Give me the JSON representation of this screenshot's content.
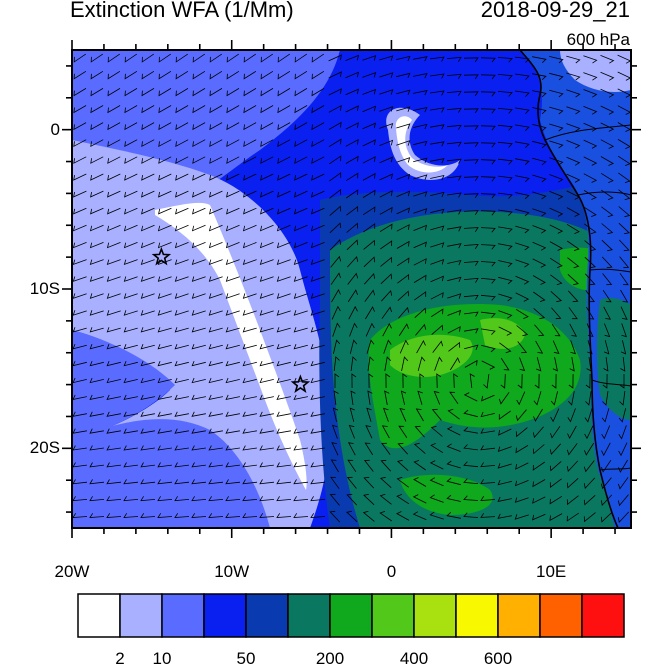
{
  "title": "Extinction WFA (1/Mm)",
  "datetime": "2018-09-29_21",
  "level": "600 hPa",
  "map": {
    "lon_range": [
      -20,
      15
    ],
    "lat_range": [
      -25,
      5
    ],
    "lat_ticks": [
      {
        "value": 0,
        "label": "0"
      },
      {
        "value": -10,
        "label": "10S"
      },
      {
        "value": -20,
        "label": "20S"
      }
    ],
    "lon_ticks": [
      {
        "value": -20,
        "label": "20W"
      },
      {
        "value": -10,
        "label": "10W"
      },
      {
        "value": 0,
        "label": "0"
      },
      {
        "value": 10,
        "label": "10E"
      }
    ],
    "markers": [
      {
        "name": "star",
        "lon": -14.4,
        "lat": -8
      },
      {
        "name": "star",
        "lon": -5.7,
        "lat": -16
      }
    ]
  },
  "colorbar": {
    "colors": [
      "#ffffff",
      "#a8b0ff",
      "#5a6cff",
      "#0a20f0",
      "#0a3ab0",
      "#0a7860",
      "#10a81c",
      "#52c81a",
      "#a8e010",
      "#f8f800",
      "#ffb000",
      "#ff6000",
      "#ff1010"
    ],
    "labels": [
      {
        "after_box": 1,
        "text": "2"
      },
      {
        "after_box": 2,
        "text": "10"
      },
      {
        "after_box": 4,
        "text": "50"
      },
      {
        "after_box": 6,
        "text": "200"
      },
      {
        "after_box": 8,
        "text": "400"
      },
      {
        "after_box": 10,
        "text": "600"
      }
    ]
  }
}
